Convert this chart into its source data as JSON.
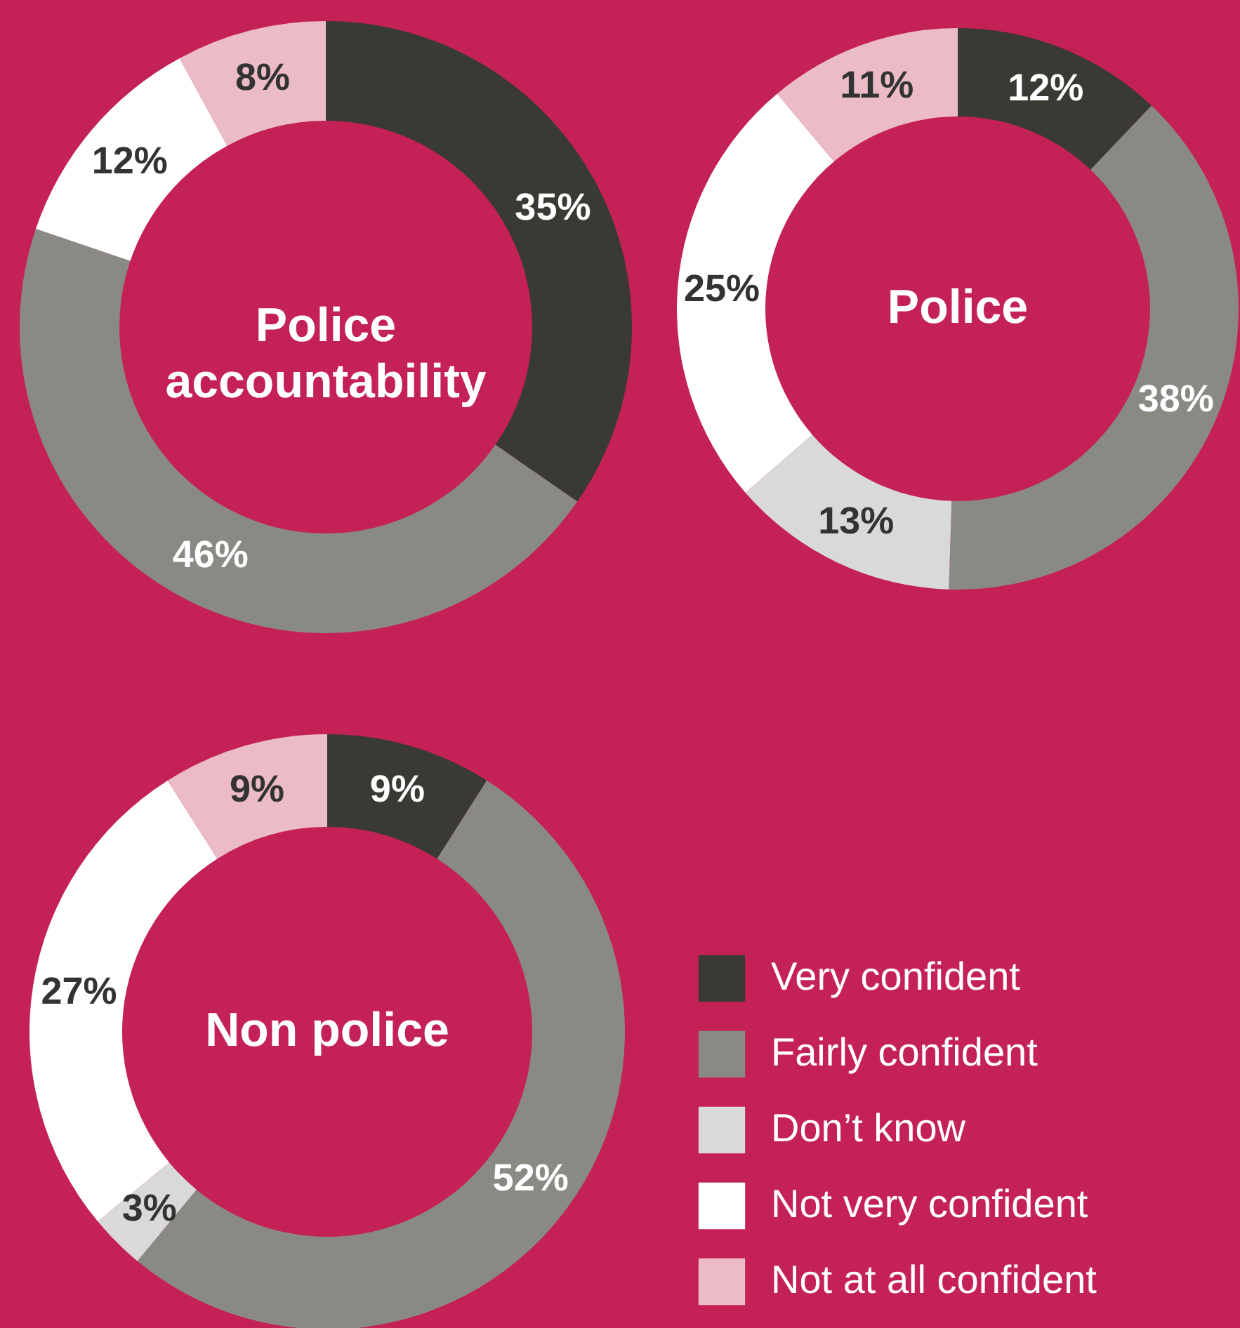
{
  "chart_data": [
    {
      "type": "donut",
      "title": "Police accountability",
      "categories": [
        null,
        null,
        null,
        null
      ],
      "values": [
        35,
        46,
        12,
        8
      ],
      "value_labels": [
        "35%",
        "46%",
        "12%",
        "8%"
      ],
      "colors": [
        "#3a3a35",
        "#8a8a85",
        "#ffffff",
        "#ebbcc6"
      ]
    },
    {
      "type": "donut",
      "title": "Police",
      "categories": [
        null,
        null,
        null,
        null,
        null
      ],
      "values": [
        12,
        38,
        13,
        25,
        11
      ],
      "value_labels": [
        "12%",
        "38%",
        "13%",
        "25%",
        "11%"
      ],
      "colors": [
        "#3a3a35",
        "#8a8a85",
        "#d9d9d9",
        "#ffffff",
        "#ebbcc6"
      ]
    },
    {
      "type": "donut",
      "title": "Non police",
      "categories": [
        "Very confident",
        "Fairly confident",
        "Don’t know",
        "Not very confident",
        "Not at all confident"
      ],
      "values": [
        9,
        52,
        3,
        27,
        9
      ],
      "value_labels": [
        "9%",
        "52%",
        "3%",
        "27%",
        "9%"
      ],
      "colors": [
        "#3a3a35",
        "#8a8a85",
        "#d9d9d9",
        "#ffffff",
        "#ebbcc6"
      ],
      "legend": "right"
    }
  ]
}
